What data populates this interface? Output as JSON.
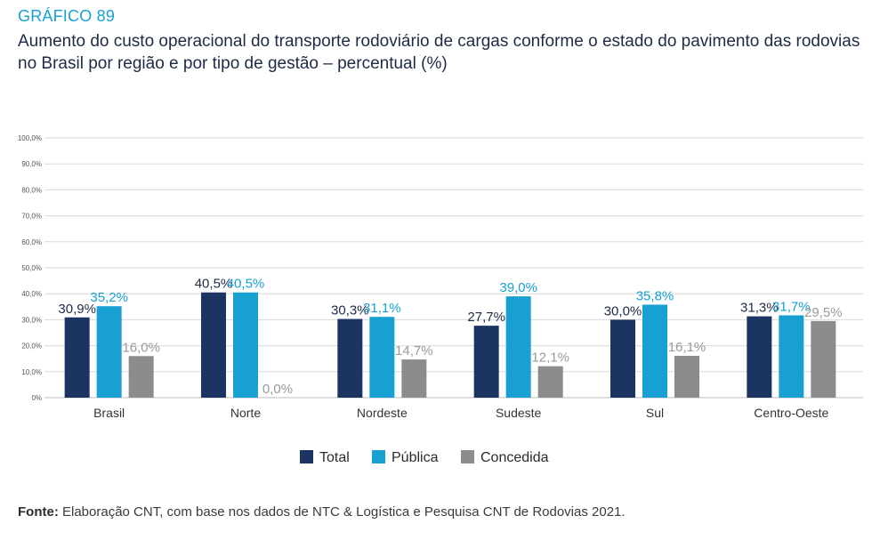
{
  "figure_label": "GRÁFICO 89",
  "chart_data": {
    "type": "bar",
    "title": "Aumento do custo operacional do transporte rodoviário de cargas conforme o estado do pavimento das rodovias no Brasil por região e por tipo de gestão – percentual (%)",
    "categories": [
      "Brasil",
      "Norte",
      "Nordeste",
      "Sudeste",
      "Sul",
      "Centro-Oeste"
    ],
    "series": [
      {
        "name": "Total",
        "color": "#1c3461",
        "values": [
          30.9,
          40.5,
          30.3,
          27.7,
          30.0,
          31.3
        ],
        "labels": [
          "30,9%",
          "40,5%",
          "30,3%",
          "27,7%",
          "30,0%",
          "31,3%"
        ]
      },
      {
        "name": "Pública",
        "color": "#19a0d2",
        "values": [
          35.2,
          40.5,
          31.1,
          39.0,
          35.8,
          31.7
        ],
        "labels": [
          "35,2%",
          "40,5%",
          "31,1%",
          "39,0%",
          "35,8%",
          "31,7%"
        ]
      },
      {
        "name": "Concedida",
        "color": "#8c8c8c",
        "values": [
          16.0,
          0.0,
          14.7,
          12.1,
          16.1,
          29.5
        ],
        "labels": [
          "16,0%",
          "0,0%",
          "14,7%",
          "12,1%",
          "16,1%",
          "29,5%"
        ]
      }
    ],
    "yticks": [
      "0%",
      "10,0%",
      "20,0%",
      "30,0%",
      "40,0%",
      "50,0%",
      "60,0%",
      "70,0%",
      "80,0%",
      "90,0%",
      "100,0%"
    ],
    "ylim": [
      0,
      100
    ],
    "grid": true,
    "legend": "bottom"
  },
  "source": {
    "prefix": "Fonte:",
    "text": " Elaboração CNT, com base nos dados de NTC & Logística e Pesquisa CNT de Rodovias 2021."
  }
}
